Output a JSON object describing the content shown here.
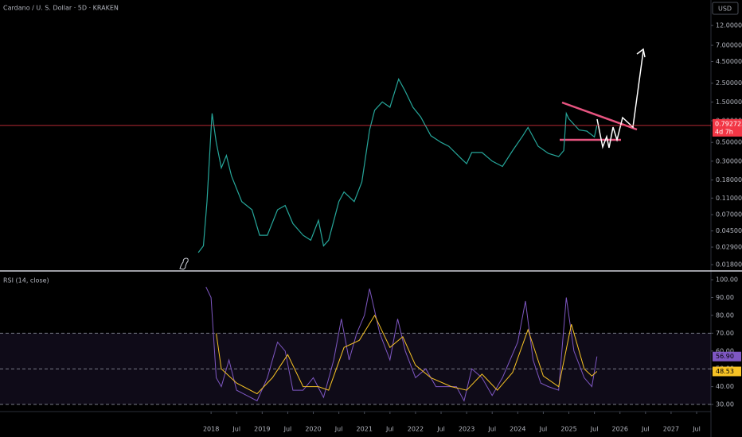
{
  "chart_data": [
    {
      "type": "line",
      "title": "Cardano / U. S. Dollar · 5D · KRAKEN",
      "unit_button": "USD",
      "log_scale": true,
      "color": "#26a69a",
      "x": [
        2017.75,
        2017.85,
        2017.92,
        2018.0,
        2018.02,
        2018.1,
        2018.2,
        2018.3,
        2018.4,
        2018.6,
        2018.8,
        2018.95,
        2019.1,
        2019.3,
        2019.45,
        2019.6,
        2019.8,
        2019.95,
        2020.1,
        2020.2,
        2020.3,
        2020.5,
        2020.6,
        2020.8,
        2020.95,
        2021.1,
        2021.2,
        2021.35,
        2021.5,
        2021.67,
        2021.8,
        2021.95,
        2022.1,
        2022.3,
        2022.5,
        2022.65,
        2022.9,
        2023.0,
        2023.1,
        2023.3,
        2023.5,
        2023.7,
        2023.9,
        2024.1,
        2024.2,
        2024.4,
        2024.6,
        2024.8,
        2024.9,
        2024.95,
        2025.0,
        2025.2,
        2025.35,
        2025.5,
        2025.55
      ],
      "values": [
        0.025,
        0.03,
        0.1,
        0.7,
        1.1,
        0.5,
        0.25,
        0.35,
        0.2,
        0.1,
        0.08,
        0.04,
        0.04,
        0.08,
        0.09,
        0.055,
        0.04,
        0.035,
        0.06,
        0.03,
        0.035,
        0.1,
        0.13,
        0.1,
        0.17,
        0.7,
        1.2,
        1.5,
        1.3,
        2.8,
        2.0,
        1.3,
        1.0,
        0.6,
        0.5,
        0.45,
        0.32,
        0.28,
        0.38,
        0.38,
        0.3,
        0.26,
        0.4,
        0.6,
        0.75,
        0.45,
        0.37,
        0.34,
        0.4,
        1.1,
        0.95,
        0.7,
        0.68,
        0.58,
        0.79
      ],
      "last_price": 0.792725,
      "countdown": "4d 7h",
      "last_price_color": "#f23645",
      "xlim": [
        2013.87,
        2027.78
      ],
      "ylim": [
        0.0155,
        24
      ],
      "yticks": [
        {
          "value": 12,
          "label": "12.000000"
        },
        {
          "value": 7,
          "label": "7.000000"
        },
        {
          "value": 4.5,
          "label": "4.500000"
        },
        {
          "value": 2.5,
          "label": "2.500000"
        },
        {
          "value": 1.5,
          "label": "1.500000"
        },
        {
          "value": 0.9,
          "label": "0.900000"
        },
        {
          "value": 0.5,
          "label": "0.500000"
        },
        {
          "value": 0.3,
          "label": "0.300000"
        },
        {
          "value": 0.18,
          "label": "0.180000"
        },
        {
          "value": 0.11,
          "label": "0.110000"
        },
        {
          "value": 0.07,
          "label": "0.070000"
        },
        {
          "value": 0.045,
          "label": "0.045000"
        },
        {
          "value": 0.029,
          "label": "0.029000"
        },
        {
          "value": 0.018,
          "label": "0.018000"
        }
      ]
    },
    {
      "type": "line",
      "title": "RSI (14, close)",
      "series": [
        {
          "name": "RSI",
          "color": "#7e57c2",
          "x": [
            2017.9,
            2018.0,
            2018.1,
            2018.2,
            2018.35,
            2018.5,
            2018.7,
            2018.9,
            2019.1,
            2019.3,
            2019.45,
            2019.6,
            2019.8,
            2020.0,
            2020.2,
            2020.4,
            2020.55,
            2020.7,
            2020.85,
            2021.0,
            2021.1,
            2021.3,
            2021.5,
            2021.65,
            2021.8,
            2022.0,
            2022.2,
            2022.4,
            2022.6,
            2022.8,
            2022.95,
            2023.1,
            2023.3,
            2023.5,
            2023.7,
            2023.85,
            2024.0,
            2024.15,
            2024.3,
            2024.45,
            2024.6,
            2024.8,
            2024.95,
            2025.1,
            2025.3,
            2025.45,
            2025.55
          ],
          "values": [
            96,
            90,
            45,
            40,
            55,
            38,
            35,
            32,
            45,
            65,
            60,
            38,
            38,
            45,
            34,
            55,
            78,
            55,
            70,
            80,
            95,
            70,
            55,
            78,
            60,
            45,
            50,
            40,
            40,
            40,
            32,
            50,
            45,
            35,
            45,
            55,
            65,
            88,
            55,
            42,
            40,
            38,
            90,
            60,
            45,
            40,
            56.9
          ],
          "last_value": {
            "value": 56.9,
            "label": "56.90"
          }
        },
        {
          "name": "RSI-based MA",
          "color": "#f7c325",
          "x": [
            2018.1,
            2018.2,
            2018.5,
            2018.9,
            2019.2,
            2019.5,
            2019.8,
            2020.1,
            2020.3,
            2020.6,
            2020.9,
            2021.2,
            2021.5,
            2021.75,
            2022.0,
            2022.3,
            2022.7,
            2023.0,
            2023.3,
            2023.6,
            2023.9,
            2024.2,
            2024.5,
            2024.8,
            2025.05,
            2025.3,
            2025.45,
            2025.55
          ],
          "values": [
            70,
            50,
            42,
            36,
            45,
            58,
            40,
            40,
            38,
            62,
            66,
            80,
            62,
            68,
            52,
            45,
            40,
            38,
            47,
            38,
            48,
            72,
            46,
            40,
            75,
            50,
            46,
            48.53
          ],
          "last_value": {
            "value": 48.53,
            "label": "48.53"
          }
        }
      ],
      "bands": [
        70,
        50,
        30
      ],
      "xlim": [
        2013.87,
        2027.78
      ],
      "ylim": [
        26,
        104.5
      ],
      "yticks": [
        {
          "value": 100,
          "label": "100.00"
        },
        {
          "value": 90,
          "label": "90.00"
        },
        {
          "value": 80,
          "label": "80.00"
        },
        {
          "value": 70,
          "label": "70.00"
        },
        {
          "value": 60,
          "label": "60.00"
        },
        {
          "value": 50,
          "label": "50.00"
        },
        {
          "value": 40,
          "label": "40.00"
        },
        {
          "value": 30,
          "label": "30.00"
        }
      ],
      "xticks": [
        2018,
        {
          "value": 2018.5,
          "label": "Jul"
        },
        2019,
        {
          "value": 2019.5,
          "label": "Jul"
        },
        2020,
        {
          "value": 2020.5,
          "label": "Jul"
        },
        2021,
        {
          "value": 2021.5,
          "label": "Jul"
        },
        2022,
        {
          "value": 2022.5,
          "label": "Jul"
        },
        2023,
        {
          "value": 2023.5,
          "label": "Jul"
        },
        2024,
        {
          "value": 2024.5,
          "label": "Jul"
        },
        2025,
        {
          "value": 2025.5,
          "label": "Jul"
        },
        2026,
        {
          "value": 2026.5,
          "label": "Jul"
        },
        2027,
        {
          "value": 2027.5,
          "label": "Jul"
        }
      ]
    }
  ]
}
